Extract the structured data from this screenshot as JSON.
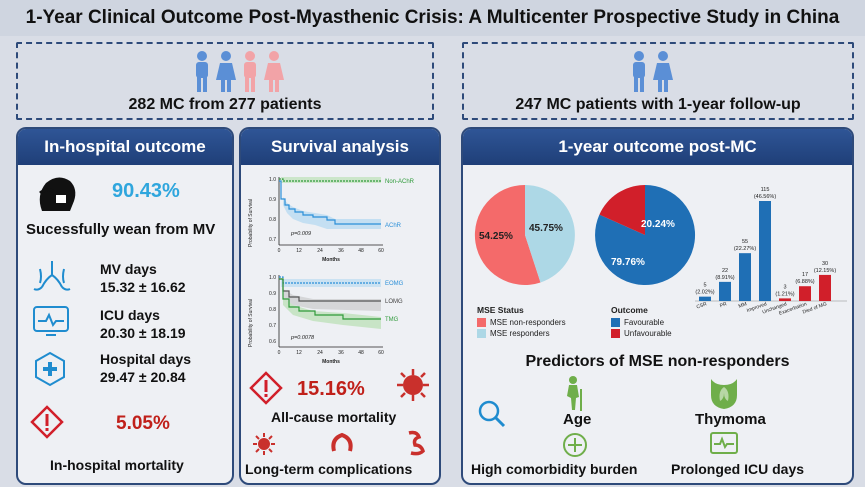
{
  "title": "1-Year Clinical Outcome Post-Myasthenic Crisis: A Multicenter Prospective Study in China",
  "cohort_left": "282 MC from 277 patients",
  "cohort_right": "247 MC patients with 1-year follow-up",
  "inhospital": {
    "header": "In-hospital outcome",
    "wean_pct": "90.43%",
    "wean_label": "Sucessfully wean from MV",
    "mv_label": "MV days",
    "mv_value": "15.32 ± 16.62",
    "icu_label": "ICU days",
    "icu_value": "20.30 ± 18.19",
    "hosp_label": "Hospital days",
    "hosp_value": "29.47 ± 20.84",
    "mortality_pct": "5.05%",
    "mortality_label": "In-hospital mortality"
  },
  "survival": {
    "header": "Survival analysis",
    "plot1": {
      "ylabel": "Probability of Survival",
      "xlabel": "Months",
      "p": "p=0.009",
      "series": [
        "Non-AChR",
        "AChR"
      ],
      "yticks": [
        "1.0",
        "0.9",
        "0.8",
        "0.7"
      ],
      "xticks": [
        "0",
        "12",
        "24",
        "36",
        "48",
        "60"
      ]
    },
    "plot2": {
      "ylabel": "Probability of Survival",
      "xlabel": "Months",
      "p": "p=0.0078",
      "series": [
        "EOMG",
        "LOMG",
        "TMG"
      ],
      "yticks": [
        "1.0",
        "0.9",
        "0.8",
        "0.7",
        "0.6"
      ],
      "xticks": [
        "0",
        "12",
        "24",
        "36",
        "48",
        "60"
      ]
    },
    "mortality_pct": "15.16%",
    "mortality_label": "All-cause mortality",
    "complications_label": "Long-term complications"
  },
  "oneyear": {
    "header": "1-year outcome post-MC",
    "pie1": {
      "a": "54.25%",
      "b": "45.75%",
      "legend_title": "MSE Status",
      "legend": [
        "MSE non-responders",
        "MSE responders"
      ],
      "colors": [
        "#f46a6a",
        "#add8e6"
      ]
    },
    "pie2": {
      "a": "79.76%",
      "b": "20.24%",
      "legend_title": "Outcome",
      "legend": [
        "Favourable",
        "Unfavourable"
      ],
      "colors": [
        "#1f6fb5",
        "#d11f2a"
      ]
    },
    "bars": [
      {
        "cat": "CSR",
        "n": "5",
        "pct": "(2.02%)"
      },
      {
        "cat": "PR",
        "n": "22",
        "pct": "(8.91%)"
      },
      {
        "cat": "MM",
        "n": "55",
        "pct": "(22.27%)"
      },
      {
        "cat": "Improved",
        "n": "115",
        "pct": "(46.56%)"
      },
      {
        "cat": "Unchanged",
        "n": "3",
        "pct": "(1.21%)"
      },
      {
        "cat": "Exacerbation",
        "n": "17",
        "pct": "(6.88%)"
      },
      {
        "cat": "Died of MG",
        "n": "30",
        "pct": "(12.15%)"
      }
    ],
    "predictors_title": "Predictors of MSE non-responders",
    "age": "Age",
    "thymoma": "Thymoma",
    "comorbidity": "High comorbidity burden",
    "icu": "Prolonged ICU days"
  },
  "chart_data": {
    "type": "bar",
    "categories": [
      "CSR",
      "PR",
      "MM",
      "Improved",
      "Unchanged",
      "Exacerbation",
      "Died of MG"
    ],
    "values": [
      5,
      22,
      55,
      115,
      3,
      17,
      30
    ]
  }
}
